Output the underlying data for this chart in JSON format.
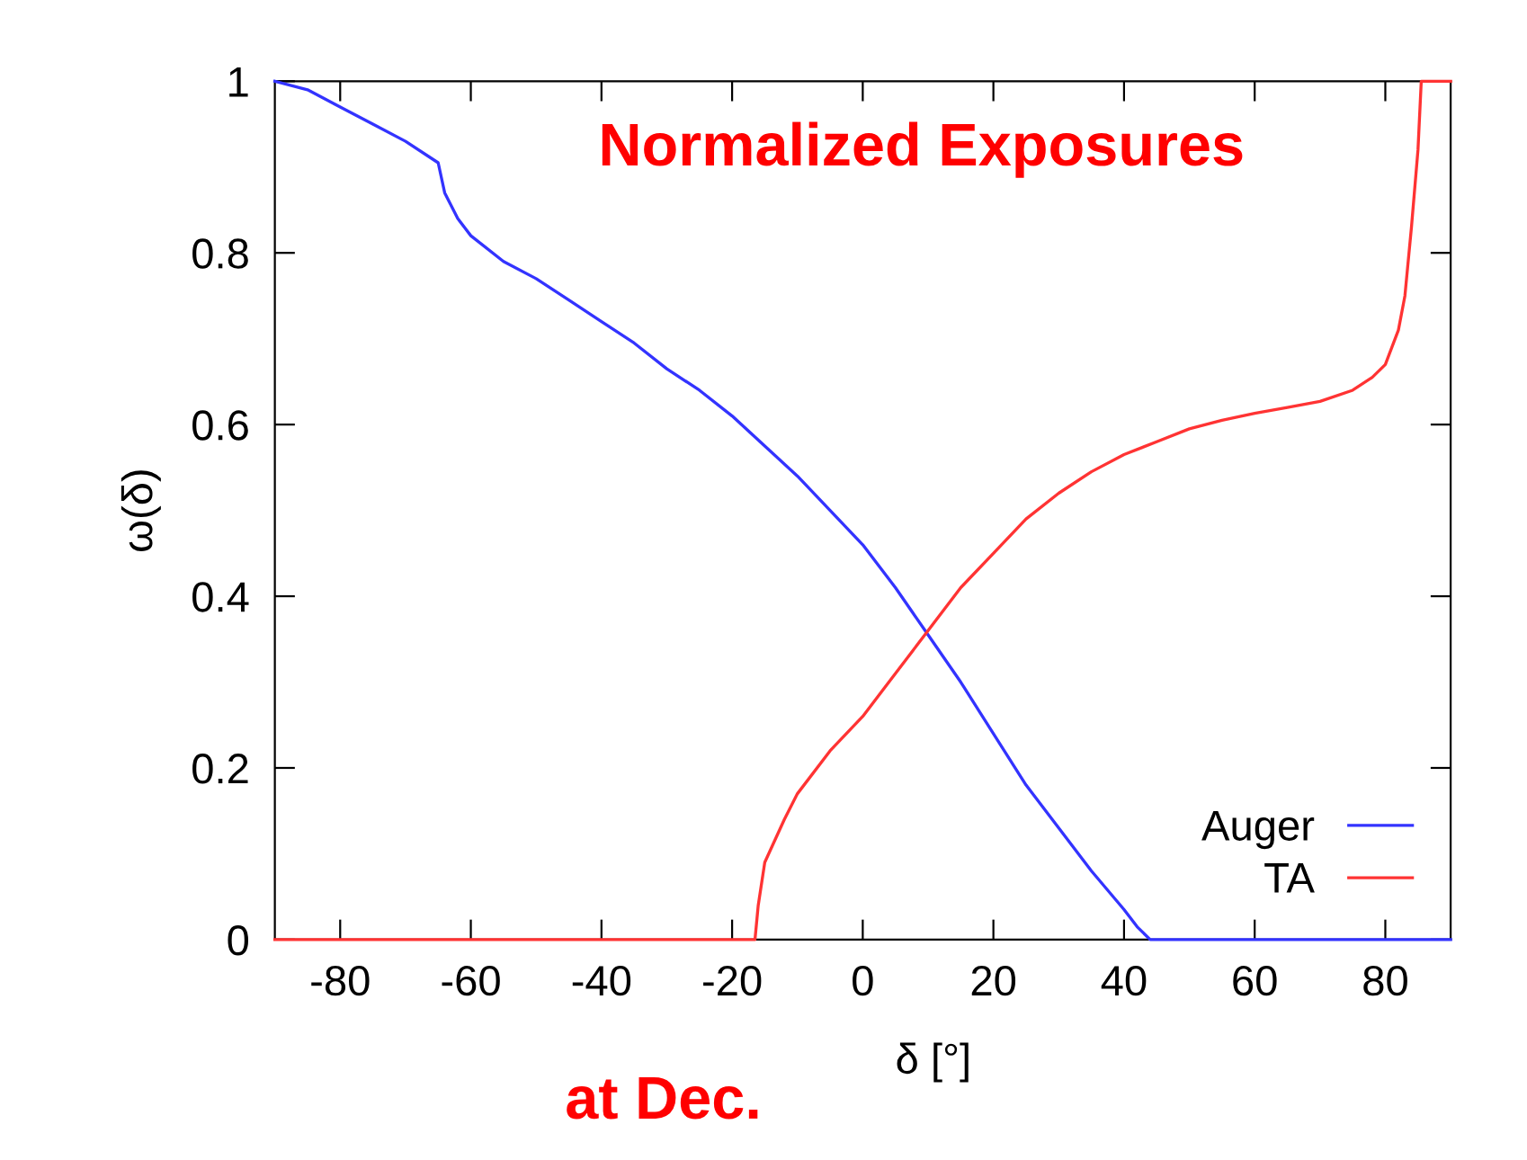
{
  "chart_data": {
    "type": "line",
    "title": "Normalized Exposures",
    "xlabel": "δ [°]",
    "ylabel": "ω(δ)",
    "annotations": [
      "at Dec."
    ],
    "xlim": [
      -90,
      90
    ],
    "ylim": [
      0,
      1
    ],
    "xticks": [
      -80,
      -60,
      -40,
      -20,
      0,
      20,
      40,
      60,
      80
    ],
    "yticks": [
      0,
      0.2,
      0.4,
      0.6,
      0.8,
      1
    ],
    "grid": false,
    "legend": "bottom right",
    "marker": "none",
    "line_style": "solid",
    "series": [
      {
        "name": "Auger",
        "color": "#3333ff",
        "x": [
          -90,
          -85,
          -80,
          -75,
          -70,
          -65,
          -64,
          -62,
          -60,
          -55,
          -50,
          -45,
          -40,
          -35,
          -30,
          -25,
          -20,
          -15,
          -10,
          -5,
          0,
          5,
          10,
          15,
          20,
          25,
          30,
          35,
          40,
          42,
          44,
          50,
          60,
          70,
          80,
          90
        ],
        "values": [
          1,
          0.99,
          0.97,
          0.95,
          0.93,
          0.905,
          0.87,
          0.84,
          0.82,
          0.79,
          0.77,
          0.745,
          0.72,
          0.695,
          0.665,
          0.64,
          0.61,
          0.575,
          0.54,
          0.5,
          0.46,
          0.41,
          0.355,
          0.3,
          0.24,
          0.18,
          0.13,
          0.08,
          0.035,
          0.015,
          0,
          0,
          0,
          0,
          0,
          0
        ]
      },
      {
        "name": "TA",
        "color": "#ff3333",
        "x": [
          -90,
          -60,
          -30,
          -16.5,
          -16,
          -15,
          -12,
          -10,
          -5,
          0,
          5,
          10,
          15,
          20,
          25,
          30,
          35,
          40,
          45,
          50,
          55,
          60,
          65,
          70,
          75,
          78,
          80,
          82,
          83,
          84,
          85,
          85.5,
          90
        ],
        "values": [
          0,
          0,
          0,
          0,
          0.04,
          0.09,
          0.14,
          0.17,
          0.22,
          0.26,
          0.31,
          0.36,
          0.41,
          0.45,
          0.49,
          0.52,
          0.545,
          0.565,
          0.58,
          0.595,
          0.605,
          0.613,
          0.62,
          0.627,
          0.64,
          0.655,
          0.67,
          0.71,
          0.75,
          0.83,
          0.92,
          1,
          1
        ]
      }
    ]
  }
}
